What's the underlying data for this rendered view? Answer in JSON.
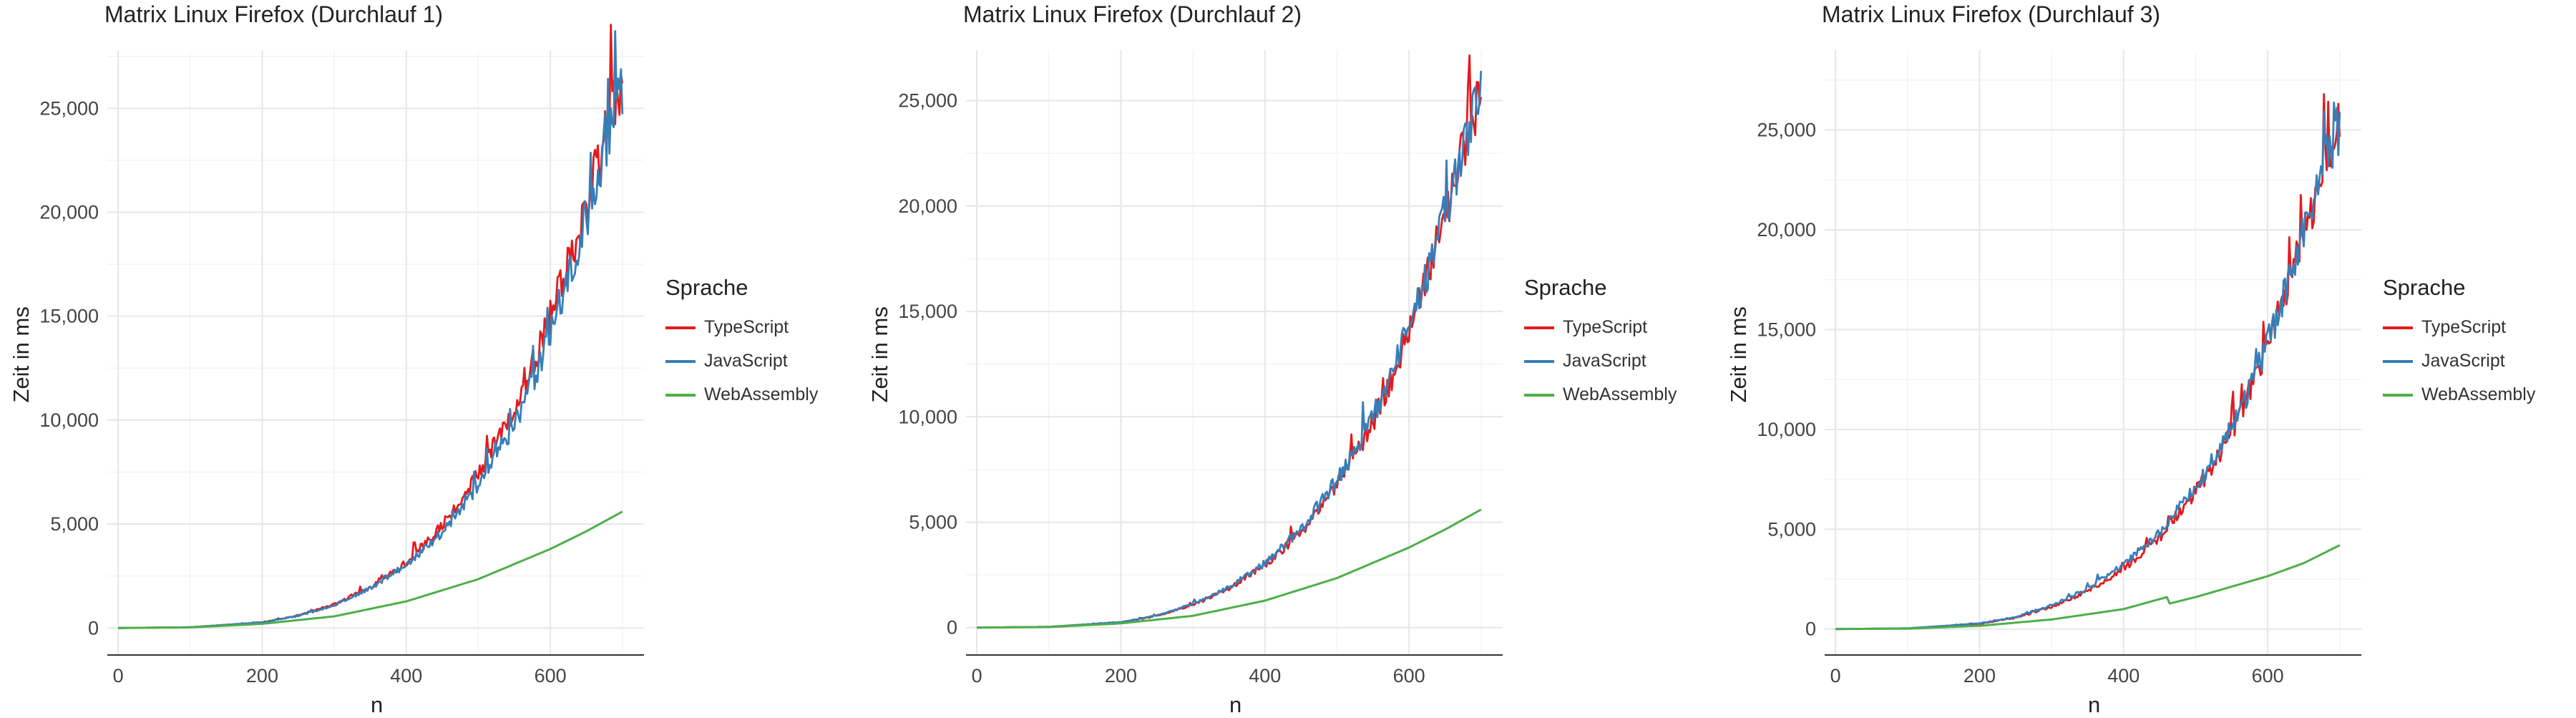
{
  "chart_data": [
    {
      "type": "line",
      "title": "Matrix Linux Firefox (Durchlauf 1)",
      "xlabel": "n",
      "ylabel": "Zeit in ms",
      "xlim": [
        -15,
        730
      ],
      "ylim": [
        -1300,
        27800
      ],
      "x_ticks": [
        0,
        200,
        400,
        600
      ],
      "y_ticks": [
        0,
        5000,
        10000,
        15000,
        20000,
        25000
      ],
      "x_tick_labels": [
        "0",
        "200",
        "400",
        "600"
      ],
      "y_tick_labels": [
        "0",
        "5,000",
        "10,000",
        "15,000",
        "20,000",
        "25,000"
      ],
      "grid": true,
      "legend": {
        "title": "Sprache",
        "position": "right"
      },
      "series": [
        {
          "name": "TypeScript",
          "color": "#E41A1C",
          "x": [
            0,
            100,
            200,
            250,
            300,
            350,
            400,
            450,
            500,
            520,
            540,
            560,
            580,
            600,
            620,
            640,
            660,
            680,
            700
          ],
          "values": [
            0,
            35,
            270,
            600,
            1150,
            1950,
            3150,
            4900,
            7400,
            8600,
            9900,
            11300,
            13100,
            15100,
            17000,
            19200,
            21600,
            24200,
            26200
          ]
        },
        {
          "name": "JavaScript",
          "color": "#377EB8",
          "x": [
            0,
            100,
            200,
            250,
            300,
            350,
            400,
            450,
            500,
            520,
            540,
            560,
            580,
            600,
            620,
            640,
            660,
            680,
            700
          ],
          "values": [
            0,
            35,
            270,
            580,
            1100,
            1900,
            3050,
            4600,
            6900,
            8000,
            9200,
            10600,
            12300,
            14200,
            16300,
            18600,
            21000,
            23500,
            26000
          ]
        },
        {
          "name": "WebAssembly",
          "color": "#4DAF4A",
          "x": [
            0,
            100,
            200,
            300,
            400,
            500,
            600,
            650,
            700
          ],
          "values": [
            0,
            25,
            200,
            560,
            1280,
            2350,
            3800,
            4650,
            5600
          ]
        }
      ]
    },
    {
      "type": "line",
      "title": "Matrix Linux Firefox (Durchlauf 2)",
      "xlabel": "n",
      "ylabel": "Zeit in ms",
      "xlim": [
        -15,
        730
      ],
      "ylim": [
        -1300,
        27400
      ],
      "x_ticks": [
        0,
        200,
        400,
        600
      ],
      "y_ticks": [
        0,
        5000,
        10000,
        15000,
        20000,
        25000
      ],
      "x_tick_labels": [
        "0",
        "200",
        "400",
        "600"
      ],
      "y_tick_labels": [
        "0",
        "5,000",
        "10,000",
        "15,000",
        "20,000",
        "25,000"
      ],
      "grid": true,
      "legend": {
        "title": "Sprache",
        "position": "right"
      },
      "series": [
        {
          "name": "TypeScript",
          "color": "#E41A1C",
          "x": [
            0,
            100,
            200,
            250,
            300,
            350,
            400,
            450,
            500,
            520,
            540,
            560,
            580,
            600,
            620,
            640,
            660,
            680,
            700
          ],
          "values": [
            0,
            35,
            250,
            560,
            1080,
            1850,
            2950,
            4500,
            6800,
            7900,
            9100,
            10500,
            12200,
            14000,
            16000,
            18300,
            20700,
            23300,
            25600
          ]
        },
        {
          "name": "JavaScript",
          "color": "#377EB8",
          "x": [
            0,
            100,
            200,
            250,
            300,
            350,
            400,
            450,
            500,
            520,
            540,
            560,
            580,
            600,
            620,
            640,
            660,
            680,
            700
          ],
          "values": [
            0,
            35,
            260,
            580,
            1120,
            1920,
            3050,
            4650,
            7000,
            8100,
            9300,
            10700,
            12400,
            14300,
            16300,
            18500,
            20900,
            23400,
            25300
          ]
        },
        {
          "name": "WebAssembly",
          "color": "#4DAF4A",
          "x": [
            0,
            100,
            200,
            300,
            400,
            500,
            600,
            650,
            700
          ],
          "values": [
            0,
            25,
            200,
            560,
            1280,
            2350,
            3800,
            4650,
            5600
          ]
        }
      ]
    },
    {
      "type": "line",
      "title": "Matrix Linux Firefox (Durchlauf 3)",
      "xlabel": "n",
      "ylabel": "Zeit in ms",
      "xlim": [
        -15,
        730
      ],
      "ylim": [
        -1300,
        29000
      ],
      "x_ticks": [
        0,
        200,
        400,
        600
      ],
      "y_ticks": [
        0,
        5000,
        10000,
        15000,
        20000,
        25000
      ],
      "x_tick_labels": [
        "0",
        "200",
        "400",
        "600"
      ],
      "y_tick_labels": [
        "0",
        "5,000",
        "10,000",
        "15,000",
        "20,000",
        "25,000"
      ],
      "grid": true,
      "legend": {
        "title": "Sprache",
        "position": "right"
      },
      "series": [
        {
          "name": "TypeScript",
          "color": "#E41A1C",
          "x": [
            0,
            100,
            200,
            250,
            300,
            350,
            400,
            450,
            500,
            520,
            540,
            560,
            580,
            600,
            620,
            640,
            660,
            680,
            700
          ],
          "values": [
            0,
            35,
            260,
            570,
            1100,
            1900,
            3000,
            4600,
            6900,
            8000,
            9200,
            10700,
            12400,
            14300,
            16300,
            18500,
            20900,
            23500,
            25500
          ]
        },
        {
          "name": "JavaScript",
          "color": "#377EB8",
          "x": [
            0,
            100,
            200,
            250,
            300,
            350,
            400,
            450,
            500,
            520,
            540,
            560,
            580,
            600,
            620,
            640,
            660,
            680,
            700
          ],
          "values": [
            0,
            35,
            280,
            610,
            1180,
            2000,
            3200,
            4800,
            7100,
            8200,
            9400,
            10800,
            12500,
            14400,
            16400,
            18600,
            21000,
            23400,
            25200
          ]
        },
        {
          "name": "WebAssembly",
          "color": "#4DAF4A",
          "x": [
            0,
            100,
            200,
            300,
            400,
            460,
            461,
            500,
            600,
            650,
            700
          ],
          "values": [
            0,
            20,
            160,
            480,
            1000,
            1600,
            1250,
            1600,
            2650,
            3300,
            4200
          ]
        }
      ]
    }
  ]
}
